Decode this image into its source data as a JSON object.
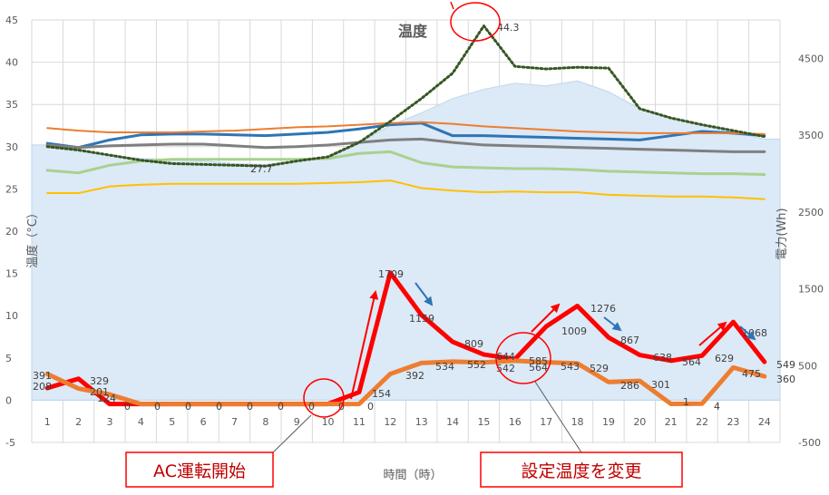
{
  "chart_data": {
    "type": "line",
    "title": "温度",
    "xlabel": "時間（時）",
    "ylabel": "温度（°C）",
    "y2label": "電力(Wh)",
    "categories": [
      "1",
      "2",
      "3",
      "4",
      "5",
      "6",
      "7",
      "8",
      "9",
      "10",
      "11",
      "12",
      "13",
      "14",
      "15",
      "16",
      "17",
      "18",
      "19",
      "20",
      "21",
      "22",
      "23",
      "24"
    ],
    "ylim": [
      -5,
      45
    ],
    "yticks": [
      "-5",
      "0",
      "5",
      "10",
      "15",
      "20",
      "25",
      "30",
      "35",
      "40",
      "45"
    ],
    "y2lim": [
      -500,
      5000
    ],
    "y2ticks": [
      "-500",
      "500",
      "1500",
      "2500",
      "3500",
      "4500"
    ],
    "grid": true,
    "background_area": [
      30.2,
      29.5,
      29.0,
      28.6,
      28.5,
      28.3,
      28.0,
      27.9,
      28.3,
      28.6,
      30.4,
      32.5,
      34.0,
      35.7,
      36.8,
      37.5,
      37.2,
      37.8,
      36.5,
      34.5,
      33.3,
      32.5,
      31.7,
      30.9
    ],
    "series": [
      {
        "color": "#2e75b6",
        "width": 3,
        "values": [
          30.4,
          29.9,
          30.8,
          31.4,
          31.5,
          31.5,
          31.4,
          31.3,
          31.5,
          31.7,
          32.1,
          32.6,
          32.8,
          31.3,
          31.3,
          31.2,
          31.1,
          31.0,
          30.9,
          30.8,
          31.3,
          31.8,
          31.6,
          31.3
        ]
      },
      {
        "color": "#ed7d31",
        "width": 2,
        "values": [
          32.2,
          31.9,
          31.7,
          31.7,
          31.7,
          31.8,
          31.9,
          32.1,
          32.3,
          32.4,
          32.6,
          32.8,
          32.9,
          32.7,
          32.4,
          32.2,
          32.0,
          31.8,
          31.7,
          31.6,
          31.6,
          31.6,
          31.6,
          31.5
        ]
      },
      {
        "color": "#7f7f7f",
        "width": 3,
        "values": [
          30.2,
          29.9,
          30.1,
          30.2,
          30.3,
          30.3,
          30.1,
          29.9,
          30.0,
          30.2,
          30.5,
          30.8,
          30.9,
          30.5,
          30.2,
          30.1,
          30.0,
          29.9,
          29.8,
          29.7,
          29.6,
          29.5,
          29.4,
          29.4
        ]
      },
      {
        "color": "#a9d18e",
        "width": 3,
        "values": [
          27.2,
          26.9,
          27.8,
          28.3,
          28.5,
          28.5,
          28.5,
          28.5,
          28.5,
          28.6,
          29.2,
          29.4,
          28.1,
          27.6,
          27.5,
          27.4,
          27.4,
          27.3,
          27.1,
          27.0,
          26.9,
          26.8,
          26.8,
          26.7
        ]
      },
      {
        "color": "#ffc000",
        "width": 2,
        "values": [
          24.5,
          24.5,
          25.3,
          25.5,
          25.6,
          25.6,
          25.6,
          25.6,
          25.6,
          25.7,
          25.8,
          26.0,
          25.1,
          24.8,
          24.6,
          24.7,
          24.6,
          24.6,
          24.3,
          24.2,
          24.1,
          24.1,
          24.0,
          23.8
        ]
      },
      {
        "color": "#375623",
        "width": 3,
        "dashed": true,
        "values": [
          30.0,
          29.6,
          29.0,
          28.4,
          28.0,
          27.9,
          27.8,
          27.7,
          28.3,
          28.8,
          30.5,
          33.0,
          35.7,
          38.7,
          44.3,
          39.5,
          39.2,
          39.4,
          39.3,
          34.5,
          33.4,
          32.6,
          31.9,
          31.2
        ]
      },
      {
        "color": "#ff0000",
        "width": 5,
        "axis": "y2",
        "values": [
          208,
          329,
          0,
          0,
          0,
          0,
          0,
          0,
          0,
          0,
          154,
          1709,
          1159,
          809,
          644,
          585,
          1009,
          1276,
          867,
          638,
          564,
          629,
          1068,
          549
        ]
      },
      {
        "color": "#ed7d31",
        "width": 5,
        "axis": "y2",
        "values": [
          391,
          201,
          124,
          0,
          0,
          0,
          0,
          0,
          0,
          0,
          0,
          392,
          534,
          552,
          542,
          564,
          543,
          529,
          286,
          301,
          1,
          4,
          475,
          360
        ]
      }
    ],
    "data_labels": [
      {
        "text": "391"
      },
      {
        "text": "208"
      },
      {
        "text": "329"
      },
      {
        "text": "201"
      },
      {
        "text": "124"
      },
      {
        "text": "0"
      },
      {
        "text": "0"
      },
      {
        "text": "0"
      },
      {
        "text": "0"
      },
      {
        "text": "0"
      },
      {
        "text": "0"
      },
      {
        "text": "0"
      },
      {
        "text": "0"
      },
      {
        "text": "0"
      },
      {
        "text": "154"
      },
      {
        "text": "1709"
      },
      {
        "text": "1159"
      },
      {
        "text": "392"
      },
      {
        "text": "534"
      },
      {
        "text": "809"
      },
      {
        "text": "552"
      },
      {
        "text": "644"
      },
      {
        "text": "542"
      },
      {
        "text": "585"
      },
      {
        "text": "564"
      },
      {
        "text": "1009"
      },
      {
        "text": "543"
      },
      {
        "text": "1276"
      },
      {
        "text": "529"
      },
      {
        "text": "867"
      },
      {
        "text": "286"
      },
      {
        "text": "638"
      },
      {
        "text": "301"
      },
      {
        "text": "564"
      },
      {
        "text": "1"
      },
      {
        "text": "4"
      },
      {
        "text": "629"
      },
      {
        "text": "1068"
      },
      {
        "text": "475"
      },
      {
        "text": "549"
      },
      {
        "text": "360"
      },
      {
        "text": "27.7"
      },
      {
        "text": "44.3"
      }
    ],
    "annotations": {
      "ac_start": "AC運転開始",
      "setting_change": "設定温度を変更"
    }
  }
}
